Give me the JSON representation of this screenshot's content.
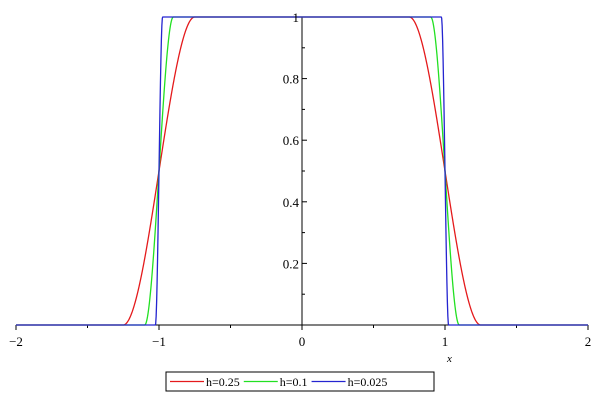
{
  "chart_data": {
    "type": "line",
    "title": "",
    "xlabel": "x",
    "ylabel": "",
    "xlim": [
      -2,
      2
    ],
    "ylim": [
      0,
      1
    ],
    "x_ticks": [
      -2,
      -1,
      0,
      1,
      2
    ],
    "x_tick_labels": [
      "−2",
      "−1",
      "0",
      "1",
      "2"
    ],
    "y_ticks": [
      0.2,
      0.4,
      0.6,
      0.8,
      1
    ],
    "y_tick_labels": [
      "0.2",
      "0.4",
      "0.6",
      "0.8",
      "1"
    ],
    "grid": false,
    "legend_position": "bottom-center",
    "series": [
      {
        "name": "h=0.25",
        "color": "#e41a1c",
        "h": 0.25
      },
      {
        "name": "h=0.1",
        "color": "#22e022",
        "h": 0.1
      },
      {
        "name": "h=0.025",
        "color": "#2424d0",
        "h": 0.025
      }
    ]
  }
}
